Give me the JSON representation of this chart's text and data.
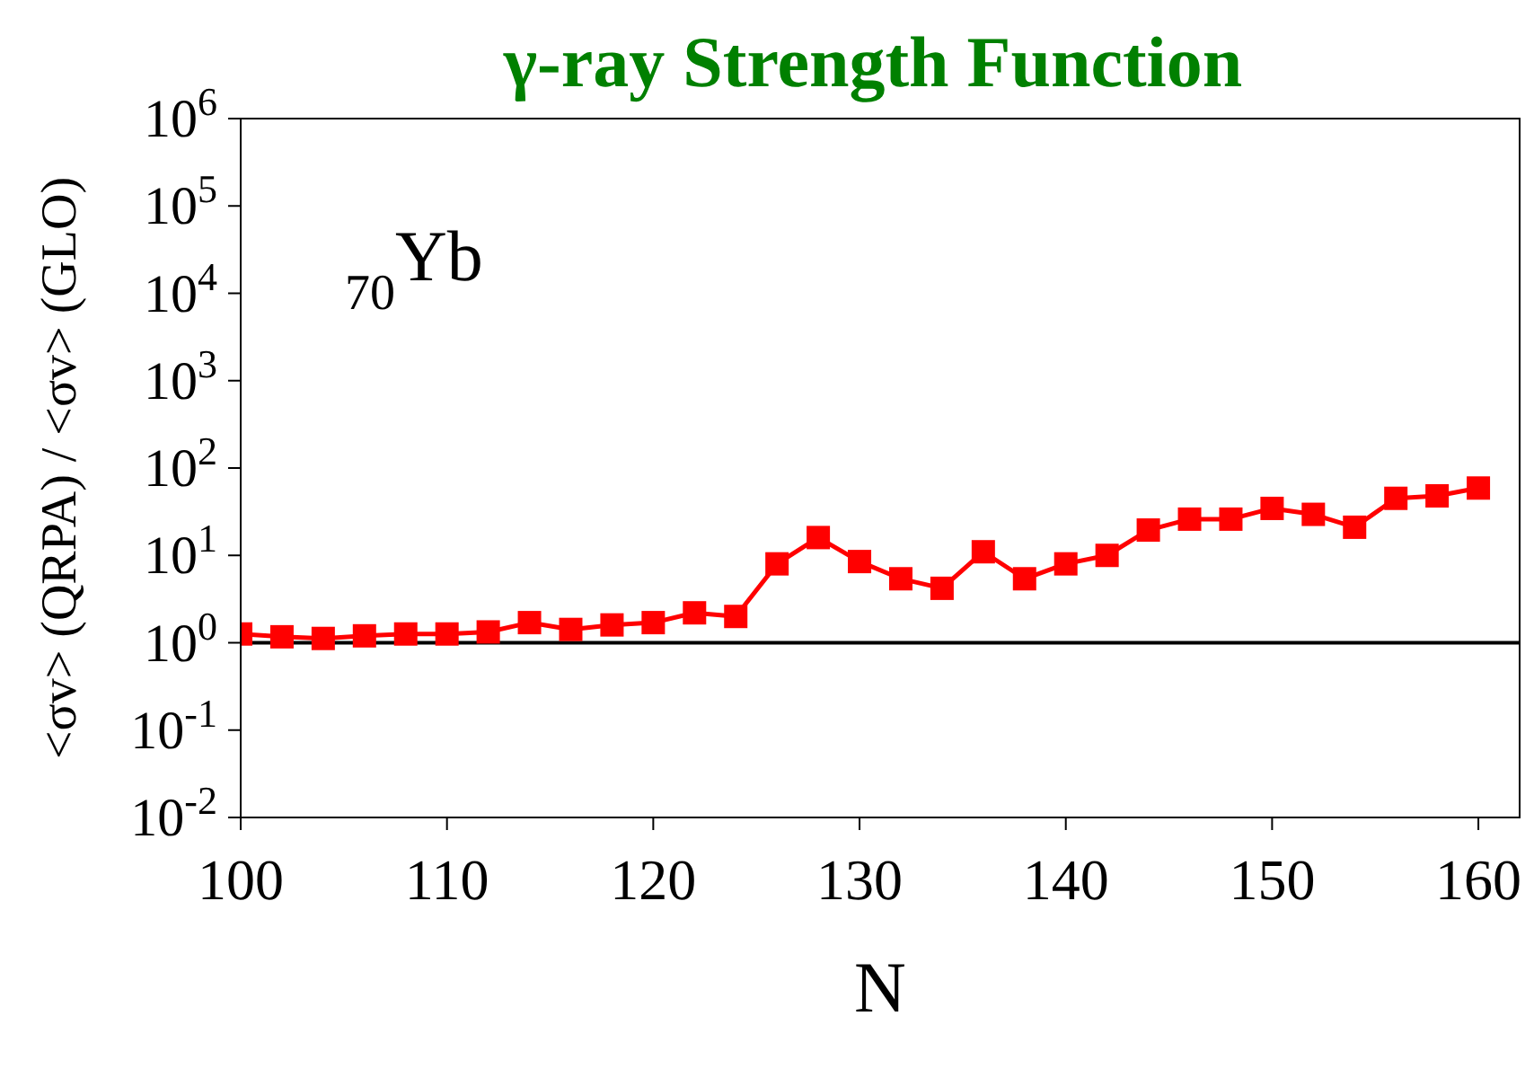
{
  "chart_data": {
    "type": "line",
    "title": "γ-ray Strength Function",
    "xlabel": "N",
    "ylabel": "<σv> (QRPA) / <σv> (GLO)",
    "annotations": [
      "$_{70}$Yb"
    ],
    "x": [
      100,
      102,
      104,
      106,
      108,
      110,
      112,
      114,
      116,
      118,
      120,
      122,
      124,
      126,
      128,
      130,
      132,
      134,
      136,
      138,
      140,
      142,
      144,
      146,
      148,
      150,
      152,
      154,
      156,
      158,
      160
    ],
    "series": [
      {
        "color": "#ff0000",
        "values": [
          1.26,
          1.17,
          1.12,
          1.2,
          1.26,
          1.26,
          1.33,
          1.7,
          1.42,
          1.6,
          1.7,
          2.2,
          2.0,
          8,
          16,
          8.5,
          5.4,
          4.2,
          11,
          5.4,
          8,
          10,
          19.5,
          26,
          26,
          34.5,
          29.5,
          21,
          45,
          48,
          59
        ]
      }
    ],
    "xlim": [
      100,
      162
    ],
    "xticks": [
      100,
      110,
      120,
      130,
      140,
      150,
      160
    ],
    "ylim": [
      0.01,
      1000000
    ],
    "yticks": [
      {
        "value": 0.01,
        "label": "10$^{-2}$"
      },
      {
        "value": 0.1,
        "label": "10$^{-1}$"
      },
      {
        "value": 1,
        "label": "10$^{0}$"
      },
      {
        "value": 10,
        "label": "10$^{1}$"
      },
      {
        "value": 100,
        "label": "10$^{2}$"
      },
      {
        "value": 1000,
        "label": "10$^{3}$"
      },
      {
        "value": 10000,
        "label": "10$^{4}$"
      },
      {
        "value": 100000,
        "label": "10$^{5}$"
      },
      {
        "value": 1000000,
        "label": "10$^{6}$"
      }
    ],
    "log": "y",
    "marker": "square",
    "line_style": "solid",
    "ref_lines": [
      {
        "axis": "y",
        "value": 1,
        "color": "#000000"
      }
    ]
  }
}
